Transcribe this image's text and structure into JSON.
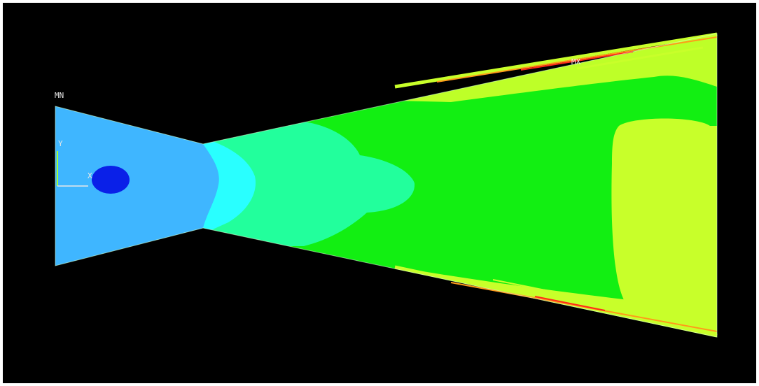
{
  "labels": {
    "min": "MN",
    "max": "MX",
    "axis_y": "Y",
    "axis_x": "X"
  },
  "colors": {
    "background": "#000000",
    "frame": "#ffffff",
    "band_light_blue": "#3fb6ff",
    "band_cyan": "#29ffff",
    "band_aqua": "#22ff9c",
    "band_green": "#12ef12",
    "band_yellow_green": "#c8ff2a",
    "edge_orange": "#ff9a1a",
    "edge_red": "#ff2a1a",
    "blob_blue": "#0a20e8",
    "axis_triad": "#a8ff30"
  }
}
